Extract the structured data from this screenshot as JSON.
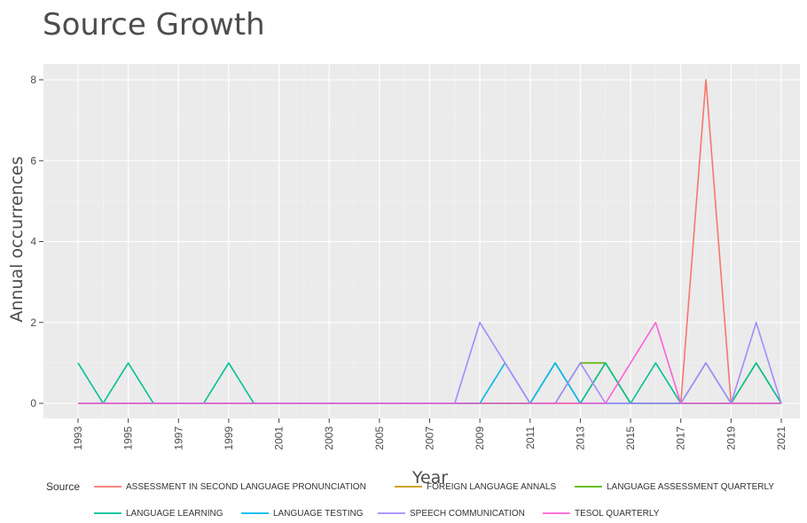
{
  "chart_data": {
    "type": "line",
    "title": "Source Growth",
    "xlabel": "Year",
    "ylabel": "Annual occurrences",
    "xlim": [
      1993,
      2021
    ],
    "ylim": [
      0,
      8
    ],
    "x_ticks": [
      "1993",
      "1995",
      "1997",
      "1999",
      "2001",
      "2003",
      "2005",
      "2007",
      "2009",
      "2011",
      "2013",
      "2015",
      "2017",
      "2019",
      "2021"
    ],
    "y_ticks": [
      "0",
      "2",
      "4",
      "6",
      "8"
    ],
    "grid": true,
    "legend_title": "Source",
    "legend_position": "bottom",
    "x": [
      1993,
      1994,
      1995,
      1996,
      1997,
      1998,
      1999,
      2000,
      2001,
      2002,
      2003,
      2004,
      2005,
      2006,
      2007,
      2008,
      2009,
      2010,
      2011,
      2012,
      2013,
      2014,
      2015,
      2016,
      2017,
      2018,
      2019,
      2020,
      2021
    ],
    "series": [
      {
        "name": "ASSESSMENT IN SECOND LANGUAGE PRONUNCIATION",
        "color": "#F8766D",
        "values": [
          0,
          0,
          0,
          0,
          0,
          0,
          0,
          0,
          0,
          0,
          0,
          0,
          0,
          0,
          0,
          0,
          0,
          0,
          0,
          0,
          0,
          0,
          0,
          0,
          0,
          8,
          0,
          0,
          0
        ]
      },
      {
        "name": "FOREIGN LANGUAGE ANNALS",
        "color": "#C49A00",
        "values": [
          0,
          0,
          0,
          0,
          0,
          0,
          0,
          0,
          0,
          0,
          0,
          0,
          0,
          0,
          0,
          0,
          0,
          0,
          0,
          0,
          0,
          1,
          0,
          0,
          0,
          0,
          0,
          0,
          0
        ]
      },
      {
        "name": "LANGUAGE ASSESSMENT QUARTERLY",
        "color": "#53B400",
        "values": [
          0,
          0,
          0,
          0,
          0,
          0,
          0,
          0,
          0,
          0,
          0,
          0,
          0,
          0,
          0,
          0,
          0,
          0,
          0,
          0,
          1,
          1,
          0,
          0,
          0,
          0,
          0,
          1,
          0
        ]
      },
      {
        "name": "LANGUAGE LEARNING",
        "color": "#00C094",
        "values": [
          1,
          0,
          1,
          0,
          0,
          0,
          1,
          0,
          0,
          0,
          0,
          0,
          0,
          0,
          0,
          0,
          0,
          0,
          0,
          1,
          0,
          1,
          0,
          1,
          0,
          1,
          0,
          1,
          0
        ]
      },
      {
        "name": "LANGUAGE TESTING",
        "color": "#00B6EB",
        "values": [
          0,
          0,
          0,
          0,
          0,
          0,
          0,
          0,
          0,
          0,
          0,
          0,
          0,
          0,
          0,
          0,
          0,
          1,
          0,
          1,
          0,
          0,
          0,
          0,
          0,
          0,
          0,
          0,
          0
        ]
      },
      {
        "name": "SPEECH COMMUNICATION",
        "color": "#A58AFF",
        "values": [
          0,
          0,
          0,
          0,
          0,
          0,
          0,
          0,
          0,
          0,
          0,
          0,
          0,
          0,
          0,
          0,
          2,
          1,
          0,
          0,
          1,
          0,
          0,
          0,
          0,
          1,
          0,
          2,
          0
        ]
      },
      {
        "name": "TESOL QUARTERLY",
        "color": "#FB61D7",
        "values": [
          0,
          0,
          0,
          0,
          0,
          0,
          0,
          0,
          0,
          0,
          0,
          0,
          0,
          0,
          0,
          0,
          0,
          0,
          0,
          0,
          0,
          0,
          1,
          2,
          0,
          0,
          0,
          0,
          0
        ]
      }
    ]
  }
}
